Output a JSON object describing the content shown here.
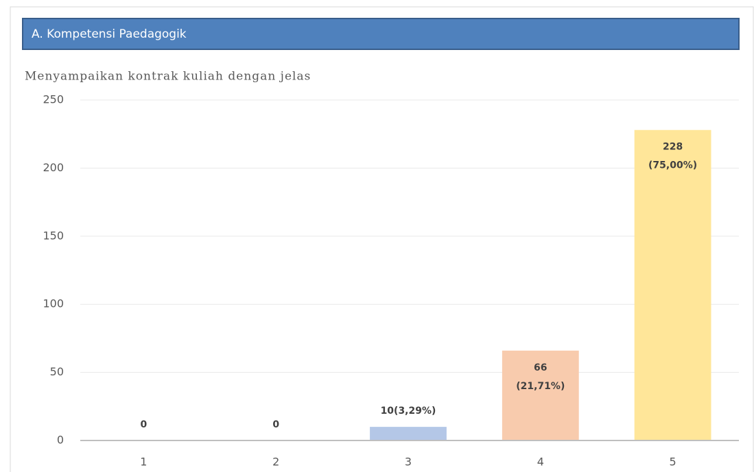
{
  "header": {
    "title": "A. Kompetensi Paedagogik"
  },
  "chart_data": {
    "type": "bar",
    "title": "Menyampaikan kontrak kuliah dengan jelas",
    "categories": [
      "1",
      "2",
      "3",
      "4",
      "5"
    ],
    "values": [
      0,
      0,
      10,
      66,
      228
    ],
    "value_labels": [
      [
        "0"
      ],
      [
        "0"
      ],
      [
        "10(3,29%)"
      ],
      [
        "66",
        "(21,71%)"
      ],
      [
        "228",
        "(75,00%)"
      ]
    ],
    "colors": [
      "#9dc3e6",
      "#c5e0b4",
      "#b4c7e7",
      "#f8cbad",
      "#ffe699"
    ],
    "ylim": [
      0,
      250
    ],
    "yticks": [
      0,
      50,
      100,
      150,
      200,
      250
    ],
    "grid": true
  }
}
